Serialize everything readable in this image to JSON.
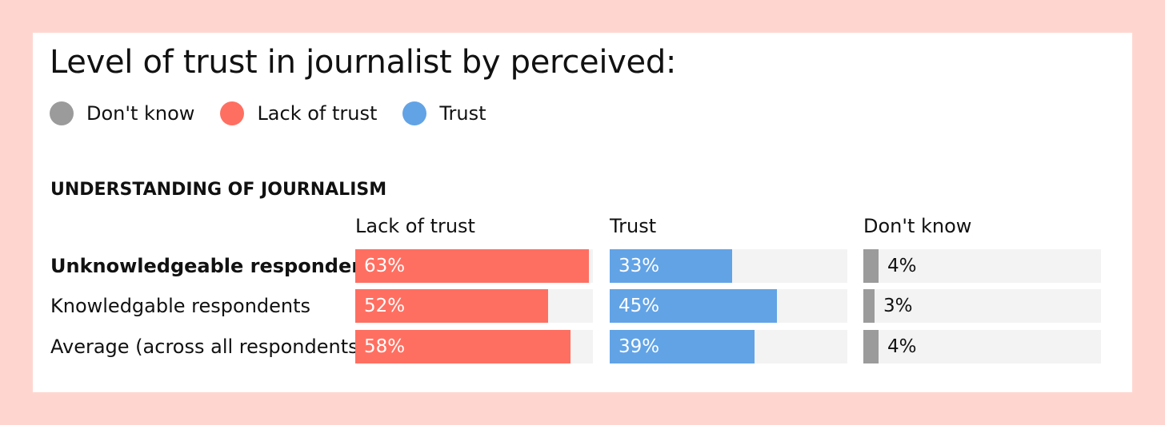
{
  "title": "Level of trust in journalist by perceived:",
  "legend": [
    {
      "label": "Don't know",
      "color": "#9b9b9b"
    },
    {
      "label": "Lack of trust",
      "color": "#ff6f61"
    },
    {
      "label": "Trust",
      "color": "#62a3e6"
    }
  ],
  "section_title": "UNDERSTANDING OF JOURNALISM",
  "chart_data": {
    "type": "bar",
    "title": "Level of trust in journalist by perceived:",
    "section": "UNDERSTANDING OF JOURNALISM",
    "categories": [
      "Unknowledgeable respondents",
      "Knowledgable respondents",
      "Average (across all respondents)"
    ],
    "bold_categories": [
      "Unknowledgeable respondents"
    ],
    "series": [
      {
        "name": "Lack of trust",
        "values": [
          63,
          52,
          58
        ],
        "labels": [
          "63%",
          "52%",
          "58%"
        ],
        "color": "#ff6f61"
      },
      {
        "name": "Trust",
        "values": [
          33,
          45,
          39
        ],
        "labels": [
          "33%",
          "45%",
          "39%"
        ],
        "color": "#62a3e6"
      },
      {
        "name": "Don't know",
        "values": [
          4,
          3,
          4
        ],
        "labels": [
          "4%",
          "3%",
          "4%"
        ],
        "color": "#9b9b9b"
      }
    ],
    "ylim": [
      0,
      64
    ],
    "legend_position": "top-left",
    "grid": false
  }
}
